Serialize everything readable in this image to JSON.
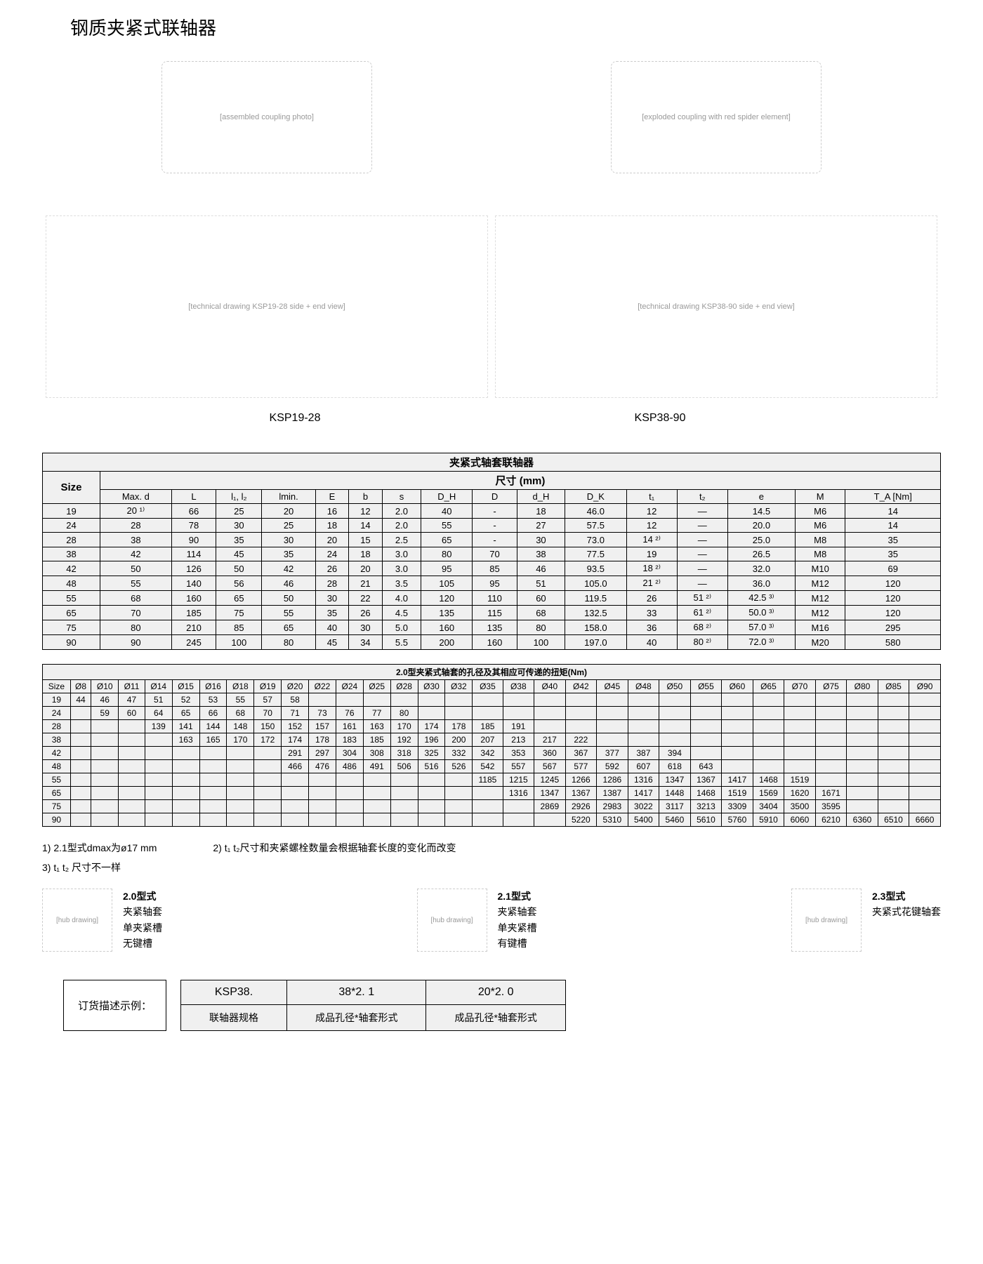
{
  "title": "钢质夹紧式联轴器",
  "product_images": {
    "left_alt": "[assembled coupling photo]",
    "right_alt": "[exploded coupling with red spider element]"
  },
  "drawings": {
    "left_alt": "[technical drawing KSP19-28 side + end view]",
    "right_alt": "[technical drawing KSP38-90 side + end view]",
    "label_left": "KSP19-28",
    "label_right": "KSP38-90"
  },
  "table1": {
    "main_title": "夹紧式轴套联轴器",
    "sub_title": "尺寸 (mm)",
    "headers": [
      "Size",
      "Max. d",
      "L",
      "l₁, l₂",
      "lmin.",
      "E",
      "b",
      "s",
      "D_H",
      "D",
      "d_H",
      "D_K",
      "t₁",
      "t₂",
      "e",
      "M",
      "T_A [Nm]"
    ],
    "rows": [
      [
        "19",
        "20 ¹⁾",
        "66",
        "25",
        "20",
        "16",
        "12",
        "2.0",
        "40",
        "-",
        "18",
        "46.0",
        "12",
        "—",
        "14.5",
        "M6",
        "14"
      ],
      [
        "24",
        "28",
        "78",
        "30",
        "25",
        "18",
        "14",
        "2.0",
        "55",
        "-",
        "27",
        "57.5",
        "12",
        "—",
        "20.0",
        "M6",
        "14"
      ],
      [
        "28",
        "38",
        "90",
        "35",
        "30",
        "20",
        "15",
        "2.5",
        "65",
        "-",
        "30",
        "73.0",
        "14 ²⁾",
        "—",
        "25.0",
        "M8",
        "35"
      ],
      [
        "38",
        "42",
        "114",
        "45",
        "35",
        "24",
        "18",
        "3.0",
        "80",
        "70",
        "38",
        "77.5",
        "19",
        "—",
        "26.5",
        "M8",
        "35"
      ],
      [
        "42",
        "50",
        "126",
        "50",
        "42",
        "26",
        "20",
        "3.0",
        "95",
        "85",
        "46",
        "93.5",
        "18 ²⁾",
        "—",
        "32.0",
        "M10",
        "69"
      ],
      [
        "48",
        "55",
        "140",
        "56",
        "46",
        "28",
        "21",
        "3.5",
        "105",
        "95",
        "51",
        "105.0",
        "21 ²⁾",
        "—",
        "36.0",
        "M12",
        "120"
      ],
      [
        "55",
        "68",
        "160",
        "65",
        "50",
        "30",
        "22",
        "4.0",
        "120",
        "110",
        "60",
        "119.5",
        "26",
        "51 ²⁾",
        "42.5 ³⁾",
        "M12",
        "120"
      ],
      [
        "65",
        "70",
        "185",
        "75",
        "55",
        "35",
        "26",
        "4.5",
        "135",
        "115",
        "68",
        "132.5",
        "33",
        "61 ²⁾",
        "50.0 ³⁾",
        "M12",
        "120"
      ],
      [
        "75",
        "80",
        "210",
        "85",
        "65",
        "40",
        "30",
        "5.0",
        "160",
        "135",
        "80",
        "158.0",
        "36",
        "68 ²⁾",
        "57.0 ³⁾",
        "M16",
        "295"
      ],
      [
        "90",
        "90",
        "245",
        "100",
        "80",
        "45",
        "34",
        "5.5",
        "200",
        "160",
        "100",
        "197.0",
        "40",
        "80 ²⁾",
        "72.0 ³⁾",
        "M20",
        "580"
      ]
    ]
  },
  "table2": {
    "title": "2.0型夹紧式轴套的孔径及其相应可传递的扭矩(Nm)",
    "headers": [
      "Size",
      "Ø8",
      "Ø10",
      "Ø11",
      "Ø14",
      "Ø15",
      "Ø16",
      "Ø18",
      "Ø19",
      "Ø20",
      "Ø22",
      "Ø24",
      "Ø25",
      "Ø28",
      "Ø30",
      "Ø32",
      "Ø35",
      "Ø38",
      "Ø40",
      "Ø42",
      "Ø45",
      "Ø48",
      "Ø50",
      "Ø55",
      "Ø60",
      "Ø65",
      "Ø70",
      "Ø75",
      "Ø80",
      "Ø85",
      "Ø90"
    ],
    "rows": [
      [
        "19",
        "44",
        "46",
        "47",
        "51",
        "52",
        "53",
        "55",
        "57",
        "58",
        "",
        "",
        "",
        "",
        "",
        "",
        "",
        "",
        "",
        "",
        "",
        "",
        "",
        "",
        "",
        "",
        "",
        "",
        "",
        "",
        ""
      ],
      [
        "24",
        "",
        "59",
        "60",
        "64",
        "65",
        "66",
        "68",
        "70",
        "71",
        "73",
        "76",
        "77",
        "80",
        "",
        "",
        "",
        "",
        "",
        "",
        "",
        "",
        "",
        "",
        "",
        "",
        "",
        "",
        "",
        "",
        ""
      ],
      [
        "28",
        "",
        "",
        "",
        "139",
        "141",
        "144",
        "148",
        "150",
        "152",
        "157",
        "161",
        "163",
        "170",
        "174",
        "178",
        "185",
        "191",
        "",
        "",
        "",
        "",
        "",
        "",
        "",
        "",
        "",
        "",
        "",
        "",
        ""
      ],
      [
        "38",
        "",
        "",
        "",
        "",
        "163",
        "165",
        "170",
        "172",
        "174",
        "178",
        "183",
        "185",
        "192",
        "196",
        "200",
        "207",
        "213",
        "217",
        "222",
        "",
        "",
        "",
        "",
        "",
        "",
        "",
        "",
        "",
        "",
        ""
      ],
      [
        "42",
        "",
        "",
        "",
        "",
        "",
        "",
        "",
        "",
        "291",
        "297",
        "304",
        "308",
        "318",
        "325",
        "332",
        "342",
        "353",
        "360",
        "367",
        "377",
        "387",
        "394",
        "",
        "",
        "",
        "",
        "",
        "",
        "",
        ""
      ],
      [
        "48",
        "",
        "",
        "",
        "",
        "",
        "",
        "",
        "",
        "466",
        "476",
        "486",
        "491",
        "506",
        "516",
        "526",
        "542",
        "557",
        "567",
        "577",
        "592",
        "607",
        "618",
        "643",
        "",
        "",
        "",
        "",
        "",
        "",
        ""
      ],
      [
        "55",
        "",
        "",
        "",
        "",
        "",
        "",
        "",
        "",
        "",
        "",
        "",
        "",
        "",
        "",
        "",
        "1185",
        "1215",
        "1245",
        "1266",
        "1286",
        "1316",
        "1347",
        "1367",
        "1417",
        "1468",
        "1519",
        "",
        "",
        "",
        ""
      ],
      [
        "65",
        "",
        "",
        "",
        "",
        "",
        "",
        "",
        "",
        "",
        "",
        "",
        "",
        "",
        "",
        "",
        "",
        "1316",
        "1347",
        "1367",
        "1387",
        "1417",
        "1448",
        "1468",
        "1519",
        "1569",
        "1620",
        "1671",
        "",
        "",
        ""
      ],
      [
        "75",
        "",
        "",
        "",
        "",
        "",
        "",
        "",
        "",
        "",
        "",
        "",
        "",
        "",
        "",
        "",
        "",
        "",
        "2869",
        "2926",
        "2983",
        "3022",
        "3117",
        "3213",
        "3309",
        "3404",
        "3500",
        "3595",
        "",
        "",
        ""
      ],
      [
        "90",
        "",
        "",
        "",
        "",
        "",
        "",
        "",
        "",
        "",
        "",
        "",
        "",
        "",
        "",
        "",
        "",
        "",
        "",
        "5220",
        "5310",
        "5400",
        "5460",
        "5610",
        "5760",
        "5910",
        "6060",
        "6210",
        "6360",
        "6510",
        "6660"
      ]
    ]
  },
  "notes": {
    "n1": "1) 2.1型式dmax为ø17 mm",
    "n2": "2) t₁ t₂尺寸和夹紧螺栓数量会根据轴套长度的变化而改变",
    "n3": "3) t₁ t₂ 尺寸不一样"
  },
  "types": [
    {
      "name": "2.0型式",
      "lines": [
        "夹紧轴套",
        "单夹紧槽",
        "无键槽"
      ],
      "img": "[hub drawing]"
    },
    {
      "name": "2.1型式",
      "lines": [
        "夹紧轴套",
        "单夹紧槽",
        "有键槽"
      ],
      "img": "[hub drawing]"
    },
    {
      "name": "2.3型式",
      "lines": [
        "夹紧式花键轴套"
      ],
      "img": "[hub drawing]"
    }
  ],
  "order": {
    "label": "订货描述示例：",
    "row1": [
      "KSP38.",
      "38*2. 1",
      "20*2. 0"
    ],
    "row2": [
      "联轴器规格",
      "成品孔径*轴套形式",
      "成品孔径*轴套形式"
    ]
  }
}
